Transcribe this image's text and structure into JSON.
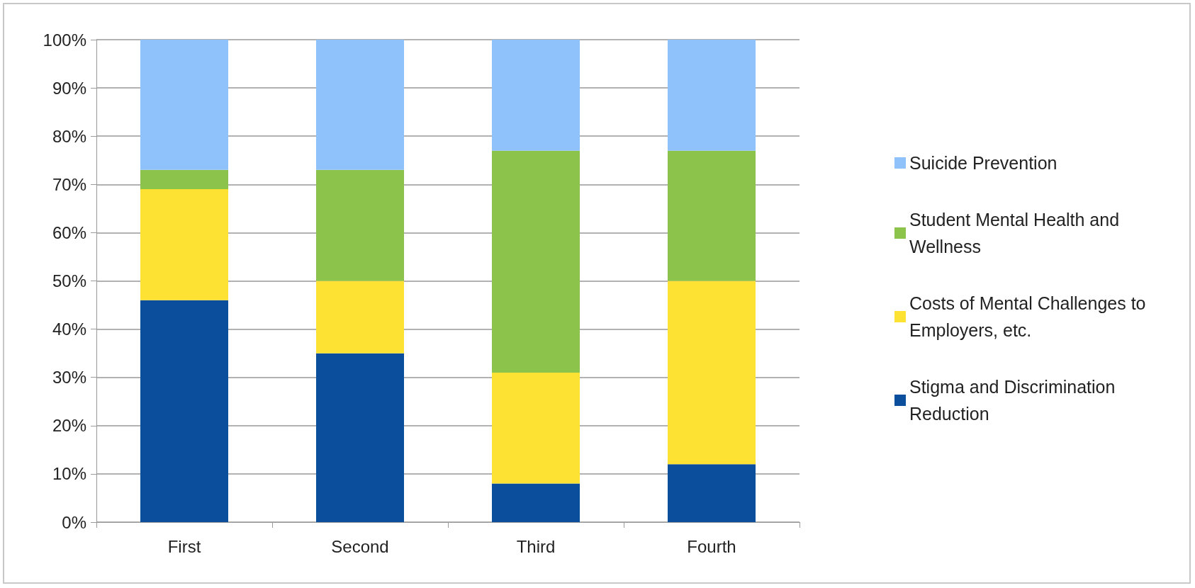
{
  "chart_data": {
    "type": "bar",
    "stacked": true,
    "categories": [
      "First",
      "Second",
      "Third",
      "Fourth"
    ],
    "series": [
      {
        "name": "Stigma and Discrimination Reduction",
        "color": "#0b4f9c",
        "values": [
          46,
          35,
          8,
          12
        ]
      },
      {
        "name": "Costs of Mental Challenges to Employers, etc.",
        "color": "#fde233",
        "values": [
          23,
          15,
          23,
          38
        ]
      },
      {
        "name": "Student Mental Health and Wellness",
        "color": "#8cc34a",
        "values": [
          4,
          23,
          46,
          27
        ]
      },
      {
        "name": "Suicide Prevention",
        "color": "#8fc1fb",
        "values": [
          27,
          27,
          23,
          23
        ]
      }
    ],
    "ylim": [
      0,
      100
    ],
    "yticks": [
      {
        "value": 0,
        "label": "0%"
      },
      {
        "value": 10,
        "label": "10%"
      },
      {
        "value": 20,
        "label": "20%"
      },
      {
        "value": 30,
        "label": "30%"
      },
      {
        "value": 40,
        "label": "40%"
      },
      {
        "value": 50,
        "label": "50%"
      },
      {
        "value": 60,
        "label": "60%"
      },
      {
        "value": 70,
        "label": "70%"
      },
      {
        "value": 80,
        "label": "80%"
      },
      {
        "value": 90,
        "label": "90%"
      },
      {
        "value": 100,
        "label": "100%"
      }
    ],
    "grid": "y",
    "legend": "right"
  }
}
